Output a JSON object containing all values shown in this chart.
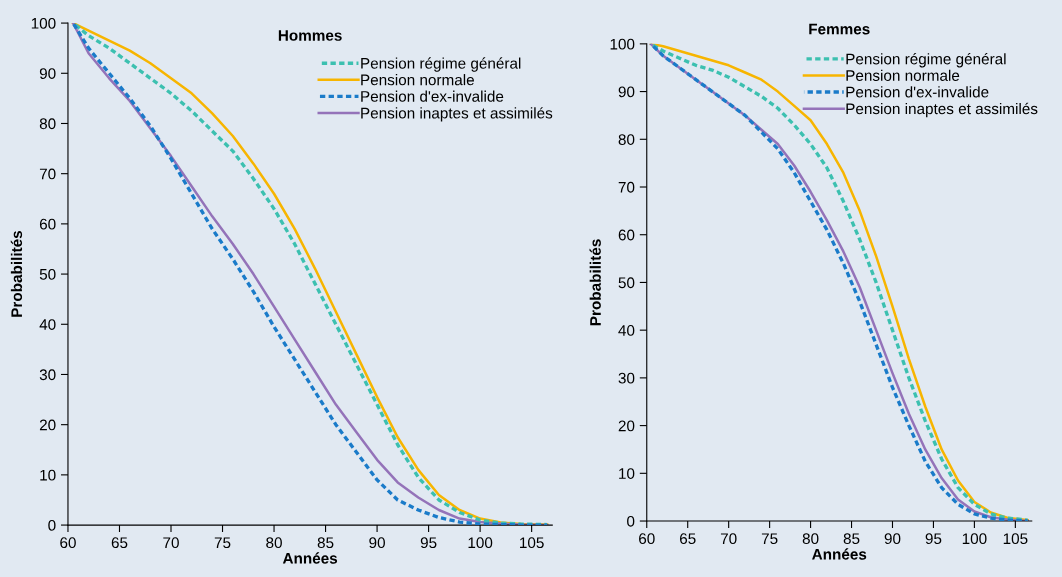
{
  "chart_data": [
    {
      "type": "line",
      "title": "Hommes",
      "xlabel": "Années",
      "ylabel": "Probabilités",
      "legend": "top right",
      "x": [
        60.5,
        62,
        64,
        66,
        68,
        70,
        72,
        74,
        76,
        78,
        80,
        82,
        84,
        86,
        88,
        90,
        92,
        94,
        96,
        98,
        100,
        102,
        104,
        106.5
      ],
      "xlim": [
        60,
        107
      ],
      "xticks": [
        60,
        65,
        70,
        75,
        80,
        85,
        90,
        95,
        100,
        105
      ],
      "ylim": [
        0,
        100
      ],
      "yticks": [
        0,
        10,
        20,
        30,
        40,
        50,
        60,
        70,
        80,
        90,
        100
      ],
      "series": [
        {
          "name": "Pension régime général",
          "color": "#3cc0b0",
          "line_style": "dashed",
          "values": [
            100,
            97.5,
            95,
            92,
            89,
            86,
            82.5,
            78.5,
            74.5,
            69,
            63,
            56,
            48,
            40,
            32,
            24,
            16,
            9.5,
            5,
            2.5,
            1,
            0.4,
            0.2,
            0.1
          ]
        },
        {
          "name": "Pension normale",
          "color": "#f7b500",
          "line_style": "solid",
          "values": [
            100,
            98.5,
            96.5,
            94.5,
            92,
            89,
            86,
            82,
            77.5,
            72,
            66,
            59,
            51,
            42.5,
            34,
            25.5,
            17.5,
            11,
            6,
            3,
            1.3,
            0.5,
            0.2,
            0.1
          ]
        },
        {
          "name": "Pension d'ex-invalide",
          "color": "#1a7bc9",
          "line_style": "dashed",
          "values": [
            100,
            95,
            90,
            85,
            79.5,
            73,
            66,
            59,
            53,
            46.5,
            39.5,
            33,
            26.5,
            20,
            14.5,
            9,
            5,
            3,
            1.5,
            0.6,
            0.2,
            0.1,
            0,
            0
          ]
        },
        {
          "name": "Pension inaptes et assimilés",
          "color": "#9473b9",
          "line_style": "solid",
          "values": [
            100,
            94,
            89,
            84.5,
            79,
            73.5,
            67.5,
            61.5,
            56,
            50,
            43.5,
            37,
            30.5,
            24,
            18.5,
            13,
            8.5,
            5.5,
            3,
            1.3,
            0.6,
            0.3,
            0.1,
            0
          ]
        }
      ]
    },
    {
      "type": "line",
      "title": "Femmes",
      "xlabel": "Années",
      "ylabel": "Probabilités",
      "legend": "top right",
      "x": [
        60.5,
        62,
        64,
        66,
        68,
        70,
        72,
        74,
        76,
        78,
        80,
        82,
        84,
        86,
        88,
        90,
        92,
        94,
        96,
        98,
        100,
        102,
        104,
        106.5
      ],
      "xlim": [
        60,
        107
      ],
      "xticks": [
        60,
        65,
        70,
        75,
        80,
        85,
        90,
        95,
        100,
        105
      ],
      "ylim": [
        0,
        100
      ],
      "yticks": [
        0,
        10,
        20,
        30,
        40,
        50,
        60,
        70,
        80,
        90,
        100
      ],
      "series": [
        {
          "name": "Pension régime général",
          "color": "#3cc0b0",
          "line_style": "dashed",
          "values": [
            100,
            98.5,
            97,
            95.5,
            94.5,
            93,
            91,
            89,
            86.5,
            83,
            79,
            74,
            67,
            59,
            50,
            40,
            30,
            21,
            13,
            7,
            3.5,
            1.5,
            0.6,
            0.2
          ]
        },
        {
          "name": "Pension normale",
          "color": "#f7b500",
          "line_style": "solid",
          "values": [
            100,
            99.5,
            98.5,
            97.5,
            96.5,
            95.5,
            94,
            92.5,
            90,
            87,
            84,
            79,
            73,
            65,
            55.5,
            45,
            34,
            24,
            15,
            8.5,
            4,
            1.8,
            0.7,
            0.2
          ]
        },
        {
          "name": "Pension d'ex-invalide",
          "color": "#1a7bc9",
          "line_style": "dashed",
          "values": [
            100,
            97.5,
            95,
            92.5,
            90,
            87.5,
            85,
            81.5,
            78,
            73,
            67,
            61,
            54,
            46,
            37,
            28,
            20,
            12.5,
            7,
            3.5,
            1.5,
            0.6,
            0.2,
            0
          ]
        },
        {
          "name": "Pension inaptes et assimilés",
          "color": "#9473b9",
          "line_style": "solid",
          "values": [
            100,
            97.5,
            95,
            92.5,
            90,
            87.5,
            85,
            82,
            79,
            74.5,
            69,
            63,
            56.5,
            49,
            40,
            31,
            22.5,
            15,
            9,
            4.5,
            2,
            0.8,
            0.3,
            0
          ]
        }
      ]
    }
  ]
}
